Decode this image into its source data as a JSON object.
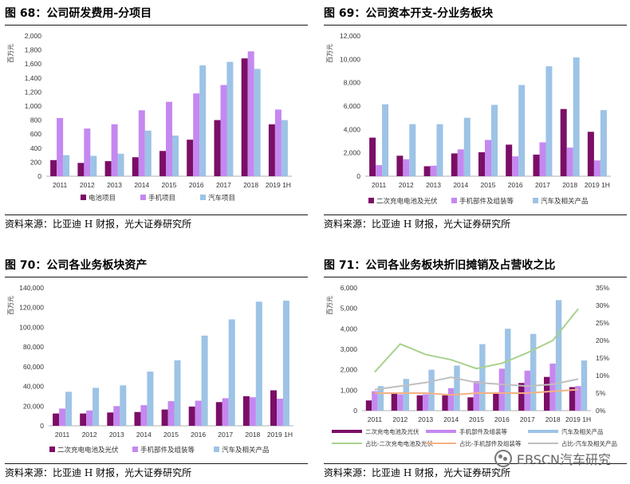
{
  "colors": {
    "purple_dark": "#7b0e66",
    "purple_light": "#c588f0",
    "blue_light": "#9dc3e6",
    "green_light": "#a9d18e",
    "orange_light": "#f4b183",
    "grey_light": "#bfbfbf"
  },
  "panels": [
    {
      "title": "图 68：公司研发费用-分项目",
      "source": "资料来源：比亚迪 H 财报，光大证券研究所"
    },
    {
      "title": "图 69：公司资本开支-分业务板块",
      "source": "资料来源：比亚迪 H 财报，光大证券研究所"
    },
    {
      "title": "图 70：公司各业务板块资产",
      "source": "资料来源：比亚迪 H 财报，光大证券研究所"
    },
    {
      "title": "图 71：公司各业务板块折旧摊销及占营收之比",
      "source": "资料来源：比亚迪 H 财报，光大证券研究所"
    }
  ],
  "watermark": {
    "text": "EBSCN汽车研究"
  },
  "chart_data": [
    {
      "type": "bar",
      "ylabel": "百万元",
      "ylim": [
        0,
        2000
      ],
      "yticks": [
        "0",
        "200",
        "400",
        "600",
        "800",
        "1,000",
        "1,200",
        "1,400",
        "1,600",
        "1,800",
        "2,000"
      ],
      "categories": [
        "2011",
        "2012",
        "2013",
        "2014",
        "2015",
        "2016",
        "2017",
        "2018",
        "2019 1H"
      ],
      "series": [
        {
          "name": "电池项目",
          "color": "#7b0e66",
          "values": [
            230,
            190,
            215,
            270,
            360,
            520,
            800,
            1680,
            740
          ]
        },
        {
          "name": "手机项目",
          "color": "#c588f0",
          "values": [
            830,
            680,
            740,
            940,
            1060,
            1180,
            1300,
            1780,
            950
          ]
        },
        {
          "name": "汽车项目",
          "color": "#9dc3e6",
          "values": [
            300,
            290,
            320,
            650,
            580,
            1580,
            1630,
            1530,
            800
          ]
        }
      ]
    },
    {
      "type": "bar",
      "ylabel": "百万元",
      "ylim": [
        0,
        12000
      ],
      "yticks": [
        "0",
        "2,000",
        "4,000",
        "6,000",
        "8,000",
        "10,000",
        "12,000"
      ],
      "categories": [
        "2011",
        "2012",
        "2013",
        "2014",
        "2015",
        "2016",
        "2017",
        "2018",
        "2019 1H"
      ],
      "series": [
        {
          "name": "二次充电电池及光伏",
          "color": "#7b0e66",
          "values": [
            3300,
            1750,
            850,
            1950,
            2050,
            2700,
            1850,
            5750,
            3800
          ]
        },
        {
          "name": "手机部件及组装等",
          "color": "#c588f0",
          "values": [
            950,
            1450,
            900,
            2300,
            3100,
            1700,
            2900,
            2450,
            1350
          ]
        },
        {
          "name": "汽车及相关产品",
          "color": "#9dc3e6",
          "values": [
            6150,
            4450,
            4450,
            5000,
            6100,
            7800,
            9400,
            10150,
            5650
          ]
        }
      ]
    },
    {
      "type": "bar",
      "ylabel": "百万元",
      "ylim": [
        0,
        140000
      ],
      "yticks": [
        "0",
        "20,000",
        "40,000",
        "60,000",
        "80,000",
        "100,000",
        "120,000",
        "140,000"
      ],
      "categories": [
        "2011",
        "2012",
        "2013",
        "2014",
        "2015",
        "2016",
        "2017",
        "2018",
        "2019 1H"
      ],
      "series": [
        {
          "name": "二次充电电池及光伏",
          "color": "#7b0e66",
          "values": [
            12500,
            12500,
            13500,
            14000,
            16500,
            19500,
            24000,
            30000,
            36000
          ]
        },
        {
          "name": "手机部件及组装等",
          "color": "#c588f0",
          "values": [
            17500,
            15500,
            20000,
            21000,
            25000,
            25500,
            28000,
            29000,
            27500
          ]
        },
        {
          "name": "汽车及相关产品",
          "color": "#9dc3e6",
          "values": [
            34500,
            38500,
            41000,
            55000,
            66500,
            91500,
            108000,
            126000,
            127000
          ]
        }
      ]
    },
    {
      "type": "bar+line",
      "ylabel": "百万元",
      "ylim": [
        0,
        6000
      ],
      "y2lim": [
        0,
        35
      ],
      "yticks": [
        "0",
        "1,000",
        "2,000",
        "3,000",
        "4,000",
        "5,000",
        "6,000"
      ],
      "y2ticks": [
        "0%",
        "5%",
        "10%",
        "15%",
        "20%",
        "25%",
        "30%",
        "35%"
      ],
      "categories": [
        "2011",
        "2012",
        "2013",
        "2014",
        "2015",
        "2016",
        "2017",
        "2018",
        "2019 1H"
      ],
      "series": [
        {
          "name": "二次充电电池及光伏",
          "color": "#7b0e66",
          "values": [
            500,
            850,
            750,
            750,
            650,
            900,
            1350,
            1650,
            1150
          ]
        },
        {
          "name": "手机部件及组装等",
          "color": "#c588f0",
          "values": [
            950,
            800,
            800,
            1100,
            1450,
            2050,
            1950,
            2300,
            1200
          ]
        },
        {
          "name": "汽车及相关产品",
          "color": "#9dc3e6",
          "values": [
            1200,
            1550,
            2000,
            2200,
            3250,
            4000,
            3750,
            5400,
            2450
          ]
        }
      ],
      "line_series": [
        {
          "name": "占比-二次充电电池及光伏",
          "color": "#a9d18e",
          "values": [
            11,
            19,
            16,
            14.5,
            12,
            13.5,
            16.5,
            20,
            29
          ]
        },
        {
          "name": "占比-手机部件及组装等",
          "color": "#f4b183",
          "values": [
            5,
            5,
            5,
            4.5,
            5,
            5,
            5,
            5.5,
            6
          ]
        },
        {
          "name": "占比-汽车及相关产品",
          "color": "#bfbfbf",
          "values": [
            6,
            7,
            8,
            9.5,
            8,
            7.5,
            7,
            7.5,
            9
          ]
        }
      ]
    }
  ]
}
